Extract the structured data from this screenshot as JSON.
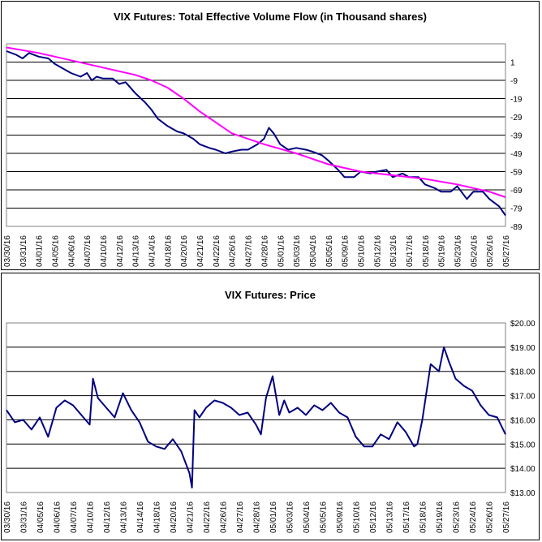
{
  "chart_data": [
    {
      "type": "line",
      "title": "VIX Futures: Total Effective Volume Flow (in Thousand shares)",
      "xlabel": "",
      "ylabel": "",
      "ylim": [
        -89,
        11
      ],
      "yticks": [
        1,
        -9,
        -19,
        -29,
        -39,
        -49,
        -59,
        -69,
        -79,
        -89
      ],
      "ytick_labels": [
        "1",
        "-9",
        "-19",
        "-29",
        "-39",
        "-49",
        "-59",
        "-69",
        "-79",
        "-89"
      ],
      "y_axis_position": "right",
      "grid": "horizontal",
      "x_tick_labels": [
        "03/30/16",
        "03/31/16",
        "04/01/16",
        "04/05/16",
        "04/06/16",
        "04/07/16",
        "04/10/16",
        "04/12/16",
        "04/13/16",
        "04/14/16",
        "04/18/16",
        "04/20/16",
        "04/21/16",
        "04/22/16",
        "04/26/16",
        "04/27/16",
        "04/28/16",
        "05/01/16",
        "05/03/16",
        "05/04/16",
        "05/05/16",
        "05/09/16",
        "05/10/16",
        "05/12/16",
        "05/13/16",
        "05/17/16",
        "05/18/16",
        "05/19/16",
        "05/23/16",
        "05/24/16",
        "05/26/16",
        "05/27/16"
      ],
      "series": [
        {
          "color": "#000080",
          "x": [
            0,
            0.6,
            1,
            1.4,
            2,
            2.6,
            3,
            3.4,
            4,
            4.6,
            5,
            5.3,
            5.6,
            6,
            6.6,
            7,
            7.4,
            8,
            8.6,
            9,
            9.4,
            10,
            10.6,
            11,
            11.6,
            12,
            12.6,
            13,
            13.6,
            14,
            14.6,
            15,
            15.6,
            16,
            16.3,
            16.6,
            17,
            17.5,
            18,
            18.6,
            19,
            19.6,
            20,
            20.6,
            21,
            21.6,
            22,
            22.6,
            23,
            23.6,
            24,
            24.6,
            25,
            25.6,
            26,
            26.6,
            27,
            27.6,
            28,
            28.6,
            29,
            29.6,
            30,
            30.6,
            31
          ],
          "values": [
            7,
            5,
            3,
            6,
            4,
            3,
            0,
            -2,
            -5,
            -7,
            -5,
            -9,
            -7,
            -8,
            -8,
            -11,
            -10,
            -16,
            -21,
            -25,
            -30,
            -34,
            -37,
            -38,
            -41,
            -44,
            -46,
            -47,
            -49,
            -48,
            -47,
            -47,
            -44,
            -41,
            -35,
            -38,
            -44,
            -47,
            -46,
            -47,
            -48,
            -50,
            -53,
            -58,
            -62,
            -62,
            -59,
            -60,
            -59,
            -58,
            -62,
            -60,
            -62,
            -62,
            -66,
            -68,
            -70,
            -70,
            -67,
            -74,
            -70,
            -70,
            -74,
            -78,
            -83
          ]
        },
        {
          "color": "#ff00ff",
          "x": [
            0,
            2,
            4,
            6,
            8,
            9,
            10,
            11,
            12,
            13,
            14,
            16,
            18,
            20,
            22,
            24,
            26,
            28,
            29,
            30,
            31
          ],
          "values": [
            9,
            6,
            2,
            -2,
            -6,
            -9,
            -13,
            -19,
            -26,
            -32,
            -38,
            -44,
            -49,
            -55,
            -59,
            -61,
            -63,
            -66,
            -68,
            -70,
            -73
          ]
        }
      ]
    },
    {
      "type": "line",
      "title": "VIX Futures: Price",
      "xlabel": "",
      "ylabel": "",
      "ylim": [
        13,
        20
      ],
      "yticks": [
        13,
        14,
        15,
        16,
        17,
        18,
        19,
        20
      ],
      "ytick_labels": [
        "$13.00",
        "$14.00",
        "$15.00",
        "$16.00",
        "$17.00",
        "$18.00",
        "$19.00",
        "$20.00"
      ],
      "y_axis_position": "right",
      "grid": "horizontal",
      "x_tick_labels": [
        "03/30/16",
        "03/31/16",
        "04/05/16",
        "04/06/16",
        "04/07/16",
        "04/10/16",
        "04/12/16",
        "04/13/16",
        "04/14/16",
        "04/18/16",
        "04/20/16",
        "04/21/16",
        "04/22/16",
        "04/26/16",
        "04/27/16",
        "04/28/16",
        "05/01/16",
        "05/03/16",
        "05/04/16",
        "05/05/16",
        "05/09/16",
        "05/10/16",
        "05/12/16",
        "05/13/16",
        "05/17/16",
        "05/18/16",
        "05/19/16",
        "05/23/16",
        "05/24/16",
        "05/26/16",
        "05/27/16"
      ],
      "series": [
        {
          "color": "#000080",
          "x": [
            0,
            0.5,
            1,
            1.5,
            2,
            2.5,
            3,
            3.5,
            4,
            4.5,
            5,
            5.2,
            5.5,
            6,
            6.5,
            7,
            7.5,
            8,
            8.5,
            9,
            9.5,
            10,
            10.5,
            11,
            11.15,
            11.3,
            11.6,
            12,
            12.5,
            13,
            13.5,
            14,
            14.5,
            15,
            15.3,
            15.6,
            16,
            16.4,
            16.7,
            17,
            17.5,
            18,
            18.5,
            19,
            19.5,
            20,
            20.5,
            21,
            21.5,
            22,
            22.5,
            23,
            23.5,
            24,
            24.5,
            24.7,
            25,
            25.5,
            26,
            26.3,
            26.6,
            27,
            27.5,
            28,
            28.5,
            29,
            29.5,
            30
          ],
          "values": [
            16.4,
            15.9,
            16.0,
            15.6,
            16.1,
            15.3,
            16.5,
            16.8,
            16.6,
            16.2,
            15.8,
            17.7,
            16.9,
            16.5,
            16.1,
            17.1,
            16.4,
            15.9,
            15.1,
            14.9,
            14.8,
            15.2,
            14.7,
            13.8,
            13.2,
            16.4,
            16.1,
            16.5,
            16.8,
            16.7,
            16.5,
            16.2,
            16.3,
            15.8,
            15.4,
            16.9,
            17.8,
            16.2,
            16.8,
            16.3,
            16.5,
            16.2,
            16.6,
            16.4,
            16.7,
            16.3,
            16.1,
            15.3,
            14.9,
            14.9,
            15.4,
            15.2,
            15.9,
            15.5,
            14.9,
            15.0,
            16.0,
            18.3,
            18.0,
            19.0,
            18.4,
            17.7,
            17.4,
            17.2,
            16.6,
            16.2,
            16.1,
            15.4
          ]
        }
      ]
    }
  ]
}
